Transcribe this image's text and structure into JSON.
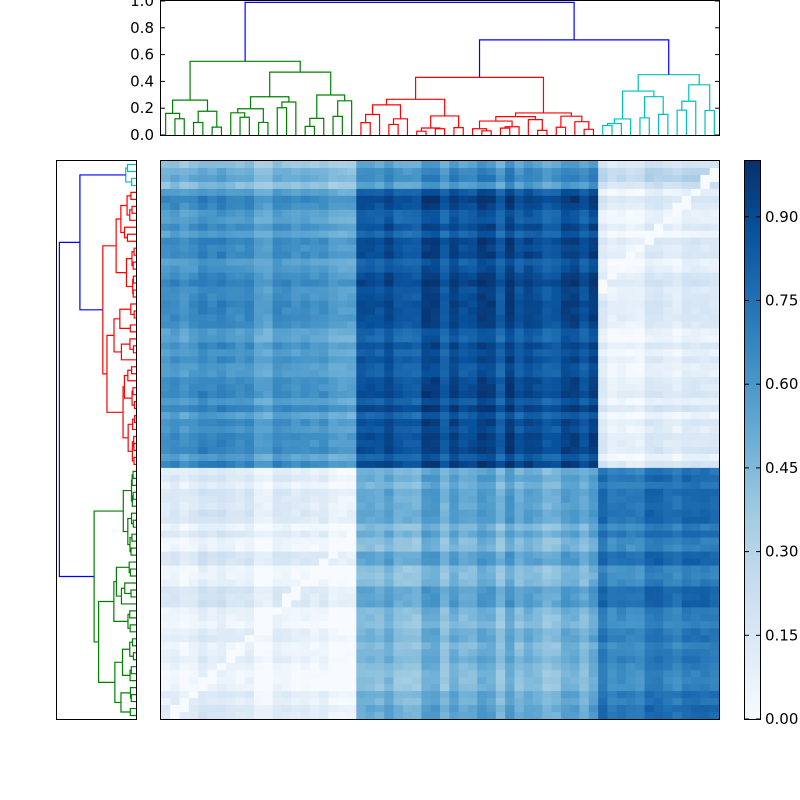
{
  "chart_data": [
    {
      "type": "dendrogram",
      "name": "top-dendrogram",
      "orientation": "top",
      "ylim": [
        0.0,
        1.0
      ],
      "yticks": [
        "0.0",
        "0.2",
        "0.4",
        "0.6",
        "0.8",
        "1.0"
      ],
      "ytick_values": [
        0.0,
        0.2,
        0.4,
        0.6,
        0.8,
        1.0
      ],
      "n_leaves": 60,
      "cluster_order": [
        "green",
        "red",
        "cyan"
      ],
      "cluster_leaf_counts": [
        21,
        26,
        13
      ],
      "top_merge_height": 0.99,
      "second_merge_height": 0.71,
      "green_merge_height": 0.55,
      "red_merge_height": 0.43,
      "cyan_merge_height": 0.45,
      "link_color_top": "#0000ff",
      "colors": {
        "green": "#008000",
        "red": "#ff0000",
        "cyan": "#00bfbf",
        "blue": "#0000ff"
      }
    },
    {
      "type": "dendrogram",
      "name": "left-dendrogram",
      "orientation": "left",
      "cluster_order_top_to_bottom": [
        "cyan",
        "red",
        "green"
      ],
      "cluster_leaf_counts": [
        4,
        40,
        36
      ],
      "n_leaves": 80
    },
    {
      "type": "heatmap",
      "name": "distance-matrix",
      "colormap": "Blues",
      "vmin": 0.0,
      "vmax": 1.0,
      "block_structure": {
        "rows_top_to_bottom": [
          {
            "cluster": "cyan",
            "count": 4
          },
          {
            "cluster": "red",
            "count": 40
          },
          {
            "cluster": "green",
            "count": 36
          }
        ],
        "cols_left_to_right": [
          {
            "cluster": "green",
            "count": 21
          },
          {
            "cluster": "red",
            "count": 26
          },
          {
            "cluster": "cyan",
            "count": 13
          }
        ]
      },
      "block_mean_values": [
        [
          0.45,
          0.62,
          0.22
        ],
        [
          0.6,
          0.88,
          0.08
        ],
        [
          0.08,
          0.5,
          0.7
        ]
      ],
      "colorbar": {
        "ticks": [
          "0.00",
          "0.15",
          "0.30",
          "0.45",
          "0.60",
          "0.75",
          "0.90"
        ],
        "tick_values": [
          0.0,
          0.15,
          0.3,
          0.45,
          0.6,
          0.75,
          0.9
        ]
      }
    }
  ]
}
